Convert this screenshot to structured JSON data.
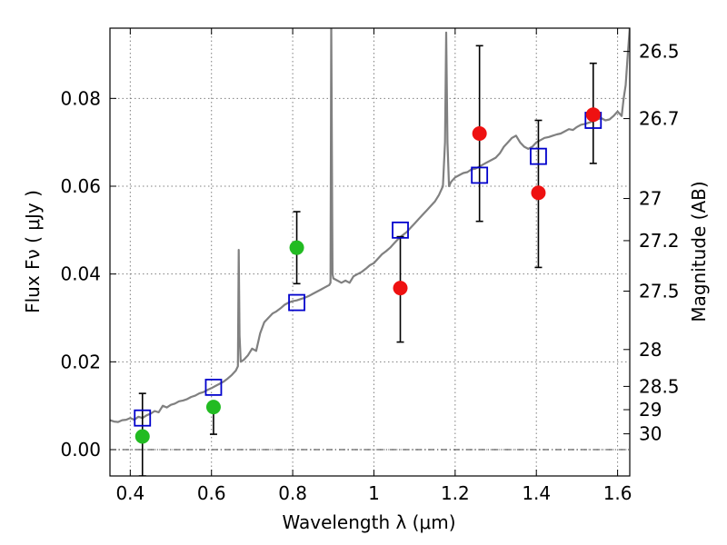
{
  "chart_data": {
    "type": "scatter",
    "xlabel": "Wavelength  λ (μm)",
    "ylabel": "Flux  Fν  ( μJy )",
    "ylabel_right": "Magnitude (AB)",
    "xlim": [
      0.35,
      1.63
    ],
    "ylim": [
      -0.006,
      0.096
    ],
    "grid": true,
    "x_ticks": [
      {
        "value": 0.4,
        "label": "0.4"
      },
      {
        "value": 0.6,
        "label": "0.6"
      },
      {
        "value": 0.8,
        "label": "0.8"
      },
      {
        "value": 1.0,
        "label": "1"
      },
      {
        "value": 1.2,
        "label": "1.2"
      },
      {
        "value": 1.4,
        "label": "1.4"
      },
      {
        "value": 1.6,
        "label": "1.6"
      }
    ],
    "y_ticks": [
      {
        "value": 0.0,
        "label": "0.00"
      },
      {
        "value": 0.02,
        "label": "0.02"
      },
      {
        "value": 0.04,
        "label": "0.04"
      },
      {
        "value": 0.06,
        "label": "0.06"
      },
      {
        "value": 0.08,
        "label": "0.08"
      }
    ],
    "right_ticks": [
      {
        "label": "26.5",
        "flux": 0.0907
      },
      {
        "label": "26.7",
        "flux": 0.0754
      },
      {
        "label": "27",
        "flux": 0.0572
      },
      {
        "label": "27.2",
        "flux": 0.0476
      },
      {
        "label": "27.5",
        "flux": 0.0361
      },
      {
        "label": "28",
        "flux": 0.0228
      },
      {
        "label": "28.5",
        "flux": 0.0144
      },
      {
        "label": "29",
        "flux": 0.0091
      },
      {
        "label": "30",
        "flux": 0.0036
      }
    ],
    "colors": {
      "sed": "#808080",
      "model_box": "#0000cc",
      "detection_green": "#22bb22",
      "detection_red": "#ee1111",
      "error_bar": "#000000",
      "grid": "#7f7f7f"
    },
    "series": [
      {
        "kind": "line",
        "points": [
          [
            0.35,
            0.0067
          ],
          [
            0.36,
            0.0064
          ],
          [
            0.37,
            0.0063
          ],
          [
            0.38,
            0.0067
          ],
          [
            0.39,
            0.0068
          ],
          [
            0.4,
            0.0072
          ],
          [
            0.41,
            0.0068
          ],
          [
            0.42,
            0.0075
          ],
          [
            0.43,
            0.0072
          ],
          [
            0.44,
            0.0078
          ],
          [
            0.45,
            0.0082
          ],
          [
            0.46,
            0.0088
          ],
          [
            0.47,
            0.0085
          ],
          [
            0.48,
            0.01
          ],
          [
            0.49,
            0.0096
          ],
          [
            0.5,
            0.0102
          ],
          [
            0.51,
            0.0105
          ],
          [
            0.52,
            0.011
          ],
          [
            0.53,
            0.0112
          ],
          [
            0.54,
            0.0115
          ],
          [
            0.55,
            0.012
          ],
          [
            0.56,
            0.0123
          ],
          [
            0.57,
            0.0128
          ],
          [
            0.58,
            0.0131
          ],
          [
            0.59,
            0.0136
          ],
          [
            0.6,
            0.014
          ],
          [
            0.61,
            0.0145
          ],
          [
            0.62,
            0.015
          ],
          [
            0.63,
            0.0155
          ],
          [
            0.64,
            0.0162
          ],
          [
            0.65,
            0.017
          ],
          [
            0.66,
            0.018
          ],
          [
            0.665,
            0.019
          ],
          [
            0.667,
            0.0455
          ],
          [
            0.669,
            0.026
          ],
          [
            0.672,
            0.02
          ],
          [
            0.68,
            0.0205
          ],
          [
            0.69,
            0.0215
          ],
          [
            0.7,
            0.023
          ],
          [
            0.71,
            0.0225
          ],
          [
            0.72,
            0.0265
          ],
          [
            0.73,
            0.029
          ],
          [
            0.74,
            0.03
          ],
          [
            0.75,
            0.031
          ],
          [
            0.76,
            0.0315
          ],
          [
            0.77,
            0.0322
          ],
          [
            0.78,
            0.033
          ],
          [
            0.79,
            0.0335
          ],
          [
            0.8,
            0.0338
          ],
          [
            0.81,
            0.034
          ],
          [
            0.82,
            0.0343
          ],
          [
            0.83,
            0.0346
          ],
          [
            0.84,
            0.035
          ],
          [
            0.85,
            0.0355
          ],
          [
            0.86,
            0.036
          ],
          [
            0.87,
            0.0365
          ],
          [
            0.88,
            0.037
          ],
          [
            0.89,
            0.0375
          ],
          [
            0.893,
            0.038
          ],
          [
            0.895,
            0.098
          ],
          [
            0.898,
            0.04
          ],
          [
            0.9,
            0.039
          ],
          [
            0.91,
            0.0385
          ],
          [
            0.92,
            0.038
          ],
          [
            0.93,
            0.0385
          ],
          [
            0.94,
            0.038
          ],
          [
            0.95,
            0.0395
          ],
          [
            0.96,
            0.04
          ],
          [
            0.97,
            0.0405
          ],
          [
            0.98,
            0.0412
          ],
          [
            0.99,
            0.042
          ],
          [
            1.0,
            0.0425
          ],
          [
            1.01,
            0.0435
          ],
          [
            1.02,
            0.0445
          ],
          [
            1.03,
            0.0452
          ],
          [
            1.04,
            0.046
          ],
          [
            1.05,
            0.047
          ],
          [
            1.06,
            0.048
          ],
          [
            1.07,
            0.0488
          ],
          [
            1.08,
            0.0495
          ],
          [
            1.09,
            0.0505
          ],
          [
            1.1,
            0.0515
          ],
          [
            1.11,
            0.0525
          ],
          [
            1.12,
            0.0535
          ],
          [
            1.13,
            0.0545
          ],
          [
            1.14,
            0.0555
          ],
          [
            1.15,
            0.0565
          ],
          [
            1.16,
            0.058
          ],
          [
            1.17,
            0.06
          ],
          [
            1.175,
            0.07
          ],
          [
            1.178,
            0.095
          ],
          [
            1.181,
            0.07
          ],
          [
            1.185,
            0.06
          ],
          [
            1.19,
            0.061
          ],
          [
            1.2,
            0.062
          ],
          [
            1.21,
            0.0625
          ],
          [
            1.22,
            0.063
          ],
          [
            1.23,
            0.0632
          ],
          [
            1.24,
            0.0638
          ],
          [
            1.25,
            0.064
          ],
          [
            1.26,
            0.0645
          ],
          [
            1.27,
            0.065
          ],
          [
            1.28,
            0.0655
          ],
          [
            1.29,
            0.066
          ],
          [
            1.3,
            0.0665
          ],
          [
            1.31,
            0.0675
          ],
          [
            1.32,
            0.069
          ],
          [
            1.33,
            0.07
          ],
          [
            1.34,
            0.071
          ],
          [
            1.35,
            0.0715
          ],
          [
            1.36,
            0.07
          ],
          [
            1.37,
            0.069
          ],
          [
            1.38,
            0.0685
          ],
          [
            1.39,
            0.069
          ],
          [
            1.4,
            0.07
          ],
          [
            1.41,
            0.0705
          ],
          [
            1.42,
            0.071
          ],
          [
            1.43,
            0.0712
          ],
          [
            1.44,
            0.0715
          ],
          [
            1.45,
            0.0718
          ],
          [
            1.46,
            0.072
          ],
          [
            1.47,
            0.0725
          ],
          [
            1.48,
            0.073
          ],
          [
            1.49,
            0.0728
          ],
          [
            1.5,
            0.0735
          ],
          [
            1.51,
            0.074
          ],
          [
            1.52,
            0.0742
          ],
          [
            1.53,
            0.0745
          ],
          [
            1.54,
            0.0748
          ],
          [
            1.55,
            0.0752
          ],
          [
            1.56,
            0.0755
          ],
          [
            1.57,
            0.075
          ],
          [
            1.58,
            0.0752
          ],
          [
            1.59,
            0.076
          ],
          [
            1.6,
            0.077
          ],
          [
            1.61,
            0.076
          ],
          [
            1.615,
            0.08
          ],
          [
            1.62,
            0.083
          ],
          [
            1.625,
            0.09
          ],
          [
            1.63,
            0.096
          ]
        ]
      },
      {
        "kind": "model_boxes",
        "points": [
          [
            0.43,
            0.0072
          ],
          [
            0.605,
            0.0142
          ],
          [
            0.81,
            0.0335
          ],
          [
            1.065,
            0.05
          ],
          [
            1.26,
            0.0625
          ],
          [
            1.405,
            0.0668
          ],
          [
            1.54,
            0.075
          ]
        ]
      },
      {
        "kind": "detections",
        "points": [
          {
            "x": 0.43,
            "y": 0.003,
            "yerr_low": -0.006,
            "yerr_high": 0.0128,
            "color": "green"
          },
          {
            "x": 0.605,
            "y": 0.0097,
            "yerr_low": 0.0035,
            "yerr_high": 0.01,
            "color": "green"
          },
          {
            "x": 0.81,
            "y": 0.046,
            "yerr_low": 0.0378,
            "yerr_high": 0.0542,
            "color": "green"
          },
          {
            "x": 1.065,
            "y": 0.0368,
            "yerr_low": 0.0245,
            "yerr_high": 0.0485,
            "color": "red"
          },
          {
            "x": 1.26,
            "y": 0.072,
            "yerr_low": 0.052,
            "yerr_high": 0.092,
            "color": "red"
          },
          {
            "x": 1.405,
            "y": 0.0585,
            "yerr_low": 0.0415,
            "yerr_high": 0.075,
            "color": "red"
          },
          {
            "x": 1.54,
            "y": 0.0763,
            "yerr_low": 0.0652,
            "yerr_high": 0.088,
            "color": "red"
          }
        ]
      }
    ]
  }
}
